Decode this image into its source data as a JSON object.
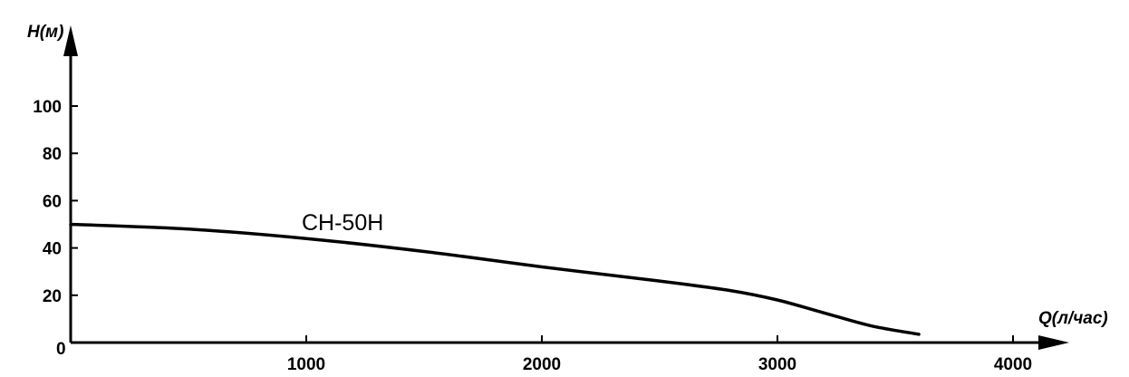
{
  "chart_data": {
    "type": "line",
    "title": "",
    "xlabel": "Q(л/час)",
    "ylabel": "H(м)",
    "origin_label": "0",
    "xlim": [
      0,
      4000
    ],
    "ylim": [
      0,
      100
    ],
    "x_ticks": [
      1000,
      2000,
      3000,
      4000
    ],
    "x_tick_labels": [
      "1000",
      "2000",
      "3000",
      "4000"
    ],
    "y_ticks": [
      20,
      40,
      60,
      80,
      100
    ],
    "y_tick_labels": [
      "20",
      "40",
      "60",
      "80",
      "100"
    ],
    "grid": false,
    "legend": "none",
    "series": [
      {
        "name": "CH-50H",
        "color": "#000000",
        "points": [
          {
            "x": 0,
            "y": 50
          },
          {
            "x": 500,
            "y": 48
          },
          {
            "x": 1000,
            "y": 44
          },
          {
            "x": 1500,
            "y": 38.5
          },
          {
            "x": 2000,
            "y": 32
          },
          {
            "x": 2500,
            "y": 26
          },
          {
            "x": 2800,
            "y": 22
          },
          {
            "x": 3000,
            "y": 18
          },
          {
            "x": 3200,
            "y": 12.5
          },
          {
            "x": 3400,
            "y": 7
          },
          {
            "x": 3600,
            "y": 3.5
          }
        ]
      }
    ]
  }
}
